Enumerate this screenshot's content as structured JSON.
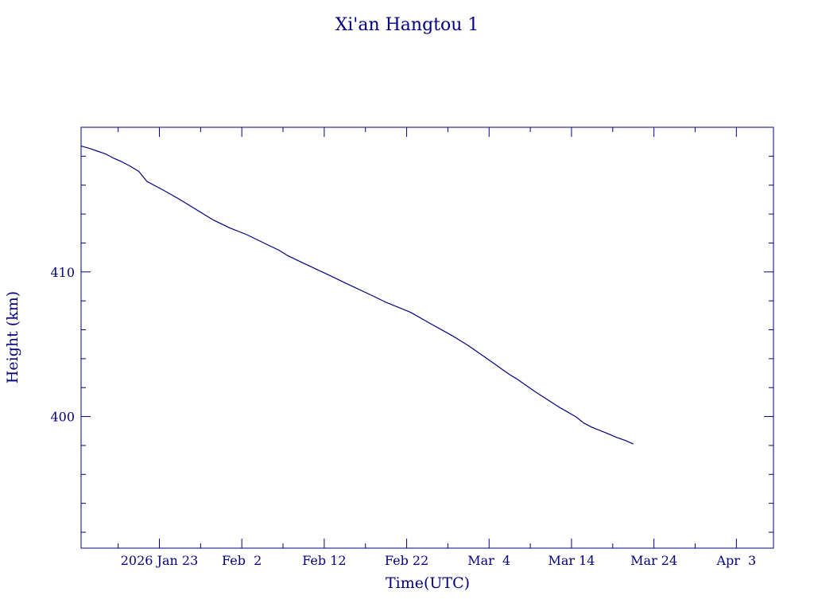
{
  "chart_data": {
    "type": "line",
    "title": "Xi'an Hangtou 1",
    "xlabel": "Time(UTC)",
    "ylabel": "Height (km)",
    "color": "#00007f",
    "x_ticks": [
      {
        "date": "2026-01-23",
        "label": "2026 Jan 23"
      },
      {
        "date": "2026-02-02",
        "label": "Feb  2"
      },
      {
        "date": "2026-02-12",
        "label": "Feb 12"
      },
      {
        "date": "2026-02-22",
        "label": "Feb 22"
      },
      {
        "date": "2026-03-04",
        "label": "Mar  4"
      },
      {
        "date": "2026-03-14",
        "label": "Mar 14"
      },
      {
        "date": "2026-03-24",
        "label": "Mar 24"
      },
      {
        "date": "2026-04-03",
        "label": "Apr  3"
      }
    ],
    "x_minor_dates": [
      "2026-01-18",
      "2026-01-28",
      "2026-02-07",
      "2026-02-17",
      "2026-02-27",
      "2026-03-09",
      "2026-03-19",
      "2026-03-29"
    ],
    "xlim": [
      "2026-01-13T12:00",
      "2026-04-07T12:00"
    ],
    "y_ticks": [
      {
        "value": 400,
        "label": "400"
      },
      {
        "value": 410,
        "label": "410"
      }
    ],
    "y_minor": [
      392,
      394,
      396,
      398,
      402,
      404,
      406,
      408,
      412,
      414,
      416,
      418
    ],
    "ylim": [
      390.9,
      420.0
    ],
    "series": [
      {
        "points": [
          [
            "2026-01-13T12:00",
            418.7
          ],
          [
            "2026-01-14T12:00",
            418.55
          ],
          [
            "2026-01-15T12:00",
            418.35
          ],
          [
            "2026-01-16T12:00",
            418.15
          ],
          [
            "2026-01-17T12:00",
            417.85
          ],
          [
            "2026-01-18T12:00",
            417.6
          ],
          [
            "2026-01-19T12:00",
            417.3
          ],
          [
            "2026-01-20T12:00",
            416.95
          ],
          [
            "2026-01-21T12:00",
            416.25
          ],
          [
            "2026-01-22T12:00",
            415.95
          ],
          [
            "2026-01-23T12:00",
            415.65
          ],
          [
            "2026-01-25T12:00",
            415.0
          ],
          [
            "2026-01-27T12:00",
            414.3
          ],
          [
            "2026-01-29T12:00",
            413.6
          ],
          [
            "2026-01-31T12:00",
            413.05
          ],
          [
            "2026-02-02T12:00",
            412.6
          ],
          [
            "2026-02-04T12:00",
            412.05
          ],
          [
            "2026-02-06T12:00",
            411.5
          ],
          [
            "2026-02-07T12:00",
            411.15
          ],
          [
            "2026-02-09T12:00",
            410.6
          ],
          [
            "2026-02-12T12:00",
            409.8
          ],
          [
            "2026-02-14T12:00",
            409.25
          ],
          [
            "2026-02-17T12:00",
            408.45
          ],
          [
            "2026-02-19T12:00",
            407.9
          ],
          [
            "2026-02-22T12:00",
            407.2
          ],
          [
            "2026-02-24T12:00",
            406.55
          ],
          [
            "2026-02-27T12:00",
            405.6
          ],
          [
            "2026-03-01T12:00",
            404.9
          ],
          [
            "2026-03-04T12:00",
            403.7
          ],
          [
            "2026-03-06T12:00",
            402.9
          ],
          [
            "2026-03-07T12:00",
            402.55
          ],
          [
            "2026-03-09T12:00",
            401.75
          ],
          [
            "2026-03-12T12:00",
            400.65
          ],
          [
            "2026-03-14T12:00",
            400.0
          ],
          [
            "2026-03-15T12:00",
            399.55
          ],
          [
            "2026-03-16T12:00",
            399.25
          ],
          [
            "2026-03-18T12:00",
            398.8
          ],
          [
            "2026-03-19T12:00",
            398.55
          ],
          [
            "2026-03-20T12:00",
            398.35
          ],
          [
            "2026-03-21T12:00",
            398.1
          ]
        ]
      }
    ]
  }
}
